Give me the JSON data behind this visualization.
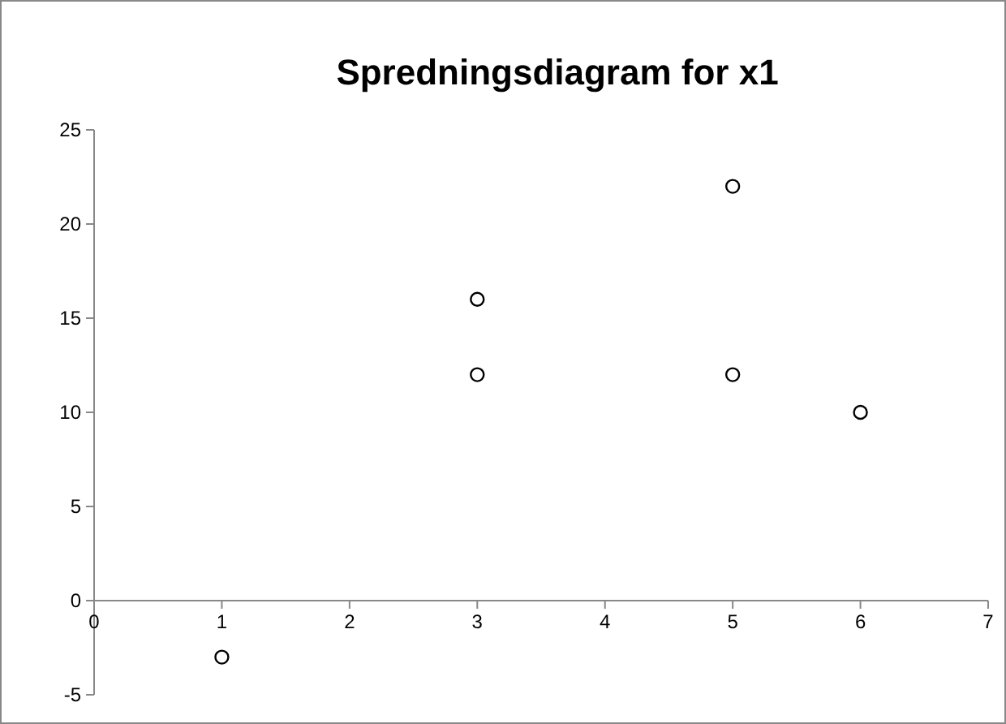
{
  "chart_data": {
    "type": "scatter",
    "title": "Spredningsdiagram for x1",
    "x": [
      1,
      3,
      3,
      5,
      5,
      6
    ],
    "values": [
      -3,
      16,
      12,
      22,
      12,
      10
    ],
    "color": "#000000",
    "marker": "circle",
    "xlim": [
      0,
      7
    ],
    "xticks": [
      0,
      1,
      2,
      3,
      4,
      5,
      6,
      7
    ],
    "ylim": [
      -5,
      25
    ],
    "yticks": [
      -5,
      0,
      5,
      10,
      15,
      20,
      25
    ],
    "grid": false
  }
}
